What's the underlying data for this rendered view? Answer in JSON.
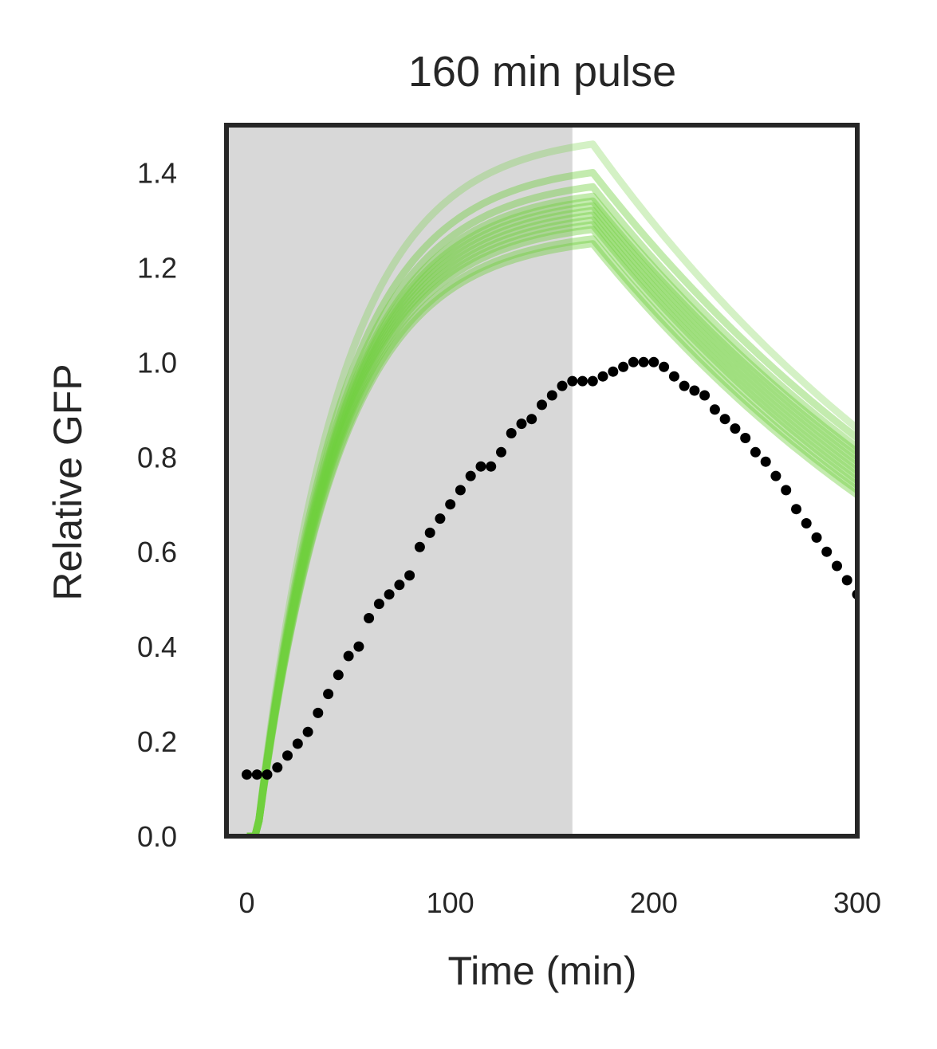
{
  "chart_data": {
    "type": "line",
    "title": "160 min pulse",
    "xlabel": "Time (min)",
    "ylabel": "Relative GFP",
    "xlim": [
      -10,
      300
    ],
    "ylim": [
      0,
      1.5
    ],
    "x_ticks": [
      "0",
      "100",
      "200",
      "300"
    ],
    "y_ticks": [
      "0.0",
      "0.2",
      "0.4",
      "0.6",
      "0.8",
      "1.0",
      "1.2",
      "1.4"
    ],
    "grid": false,
    "legend": "none",
    "shaded_region": {
      "x_start": -10,
      "x_end": 160,
      "color": "#d8d8d8",
      "label": ""
    },
    "series": [
      {
        "kind": "model-ensemble",
        "color": "#6fcf3e",
        "curves": [
          {
            "peak": 1.46,
            "end": 0.86
          },
          {
            "peak": 1.4,
            "end": 0.84
          },
          {
            "peak": 1.37,
            "end": 0.82
          },
          {
            "peak": 1.35,
            "end": 0.81
          },
          {
            "peak": 1.34,
            "end": 0.8
          },
          {
            "peak": 1.33,
            "end": 0.79
          },
          {
            "peak": 1.32,
            "end": 0.78
          },
          {
            "peak": 1.31,
            "end": 0.77
          },
          {
            "peak": 1.3,
            "end": 0.76
          },
          {
            "peak": 1.29,
            "end": 0.75
          },
          {
            "peak": 1.28,
            "end": 0.74
          },
          {
            "peak": 1.26,
            "end": 0.73
          },
          {
            "peak": 1.25,
            "end": 0.72
          }
        ],
        "peak_time": 170,
        "onset": 5
      },
      {
        "kind": "data-points",
        "color": "#000000",
        "x": [
          0,
          5,
          10,
          15,
          20,
          25,
          30,
          35,
          40,
          45,
          50,
          55,
          60,
          65,
          70,
          75,
          80,
          85,
          90,
          95,
          100,
          105,
          110,
          115,
          120,
          125,
          130,
          135,
          140,
          145,
          150,
          155,
          160,
          165,
          170,
          175,
          180,
          185,
          190,
          195,
          200,
          205,
          210,
          215,
          220,
          225,
          230,
          235,
          240,
          245,
          250,
          255,
          260,
          265,
          270,
          275,
          280,
          285,
          290,
          295,
          300
        ],
        "y": [
          0.13,
          0.13,
          0.13,
          0.145,
          0.17,
          0.195,
          0.22,
          0.26,
          0.3,
          0.34,
          0.38,
          0.4,
          0.46,
          0.49,
          0.51,
          0.53,
          0.55,
          0.61,
          0.64,
          0.67,
          0.7,
          0.73,
          0.76,
          0.78,
          0.78,
          0.81,
          0.85,
          0.87,
          0.88,
          0.91,
          0.93,
          0.95,
          0.96,
          0.96,
          0.96,
          0.97,
          0.98,
          0.99,
          1.0,
          1.0,
          1.0,
          0.99,
          0.97,
          0.95,
          0.94,
          0.93,
          0.9,
          0.88,
          0.86,
          0.84,
          0.81,
          0.79,
          0.76,
          0.73,
          0.69,
          0.66,
          0.63,
          0.6,
          0.57,
          0.54,
          0.51
        ]
      }
    ]
  }
}
